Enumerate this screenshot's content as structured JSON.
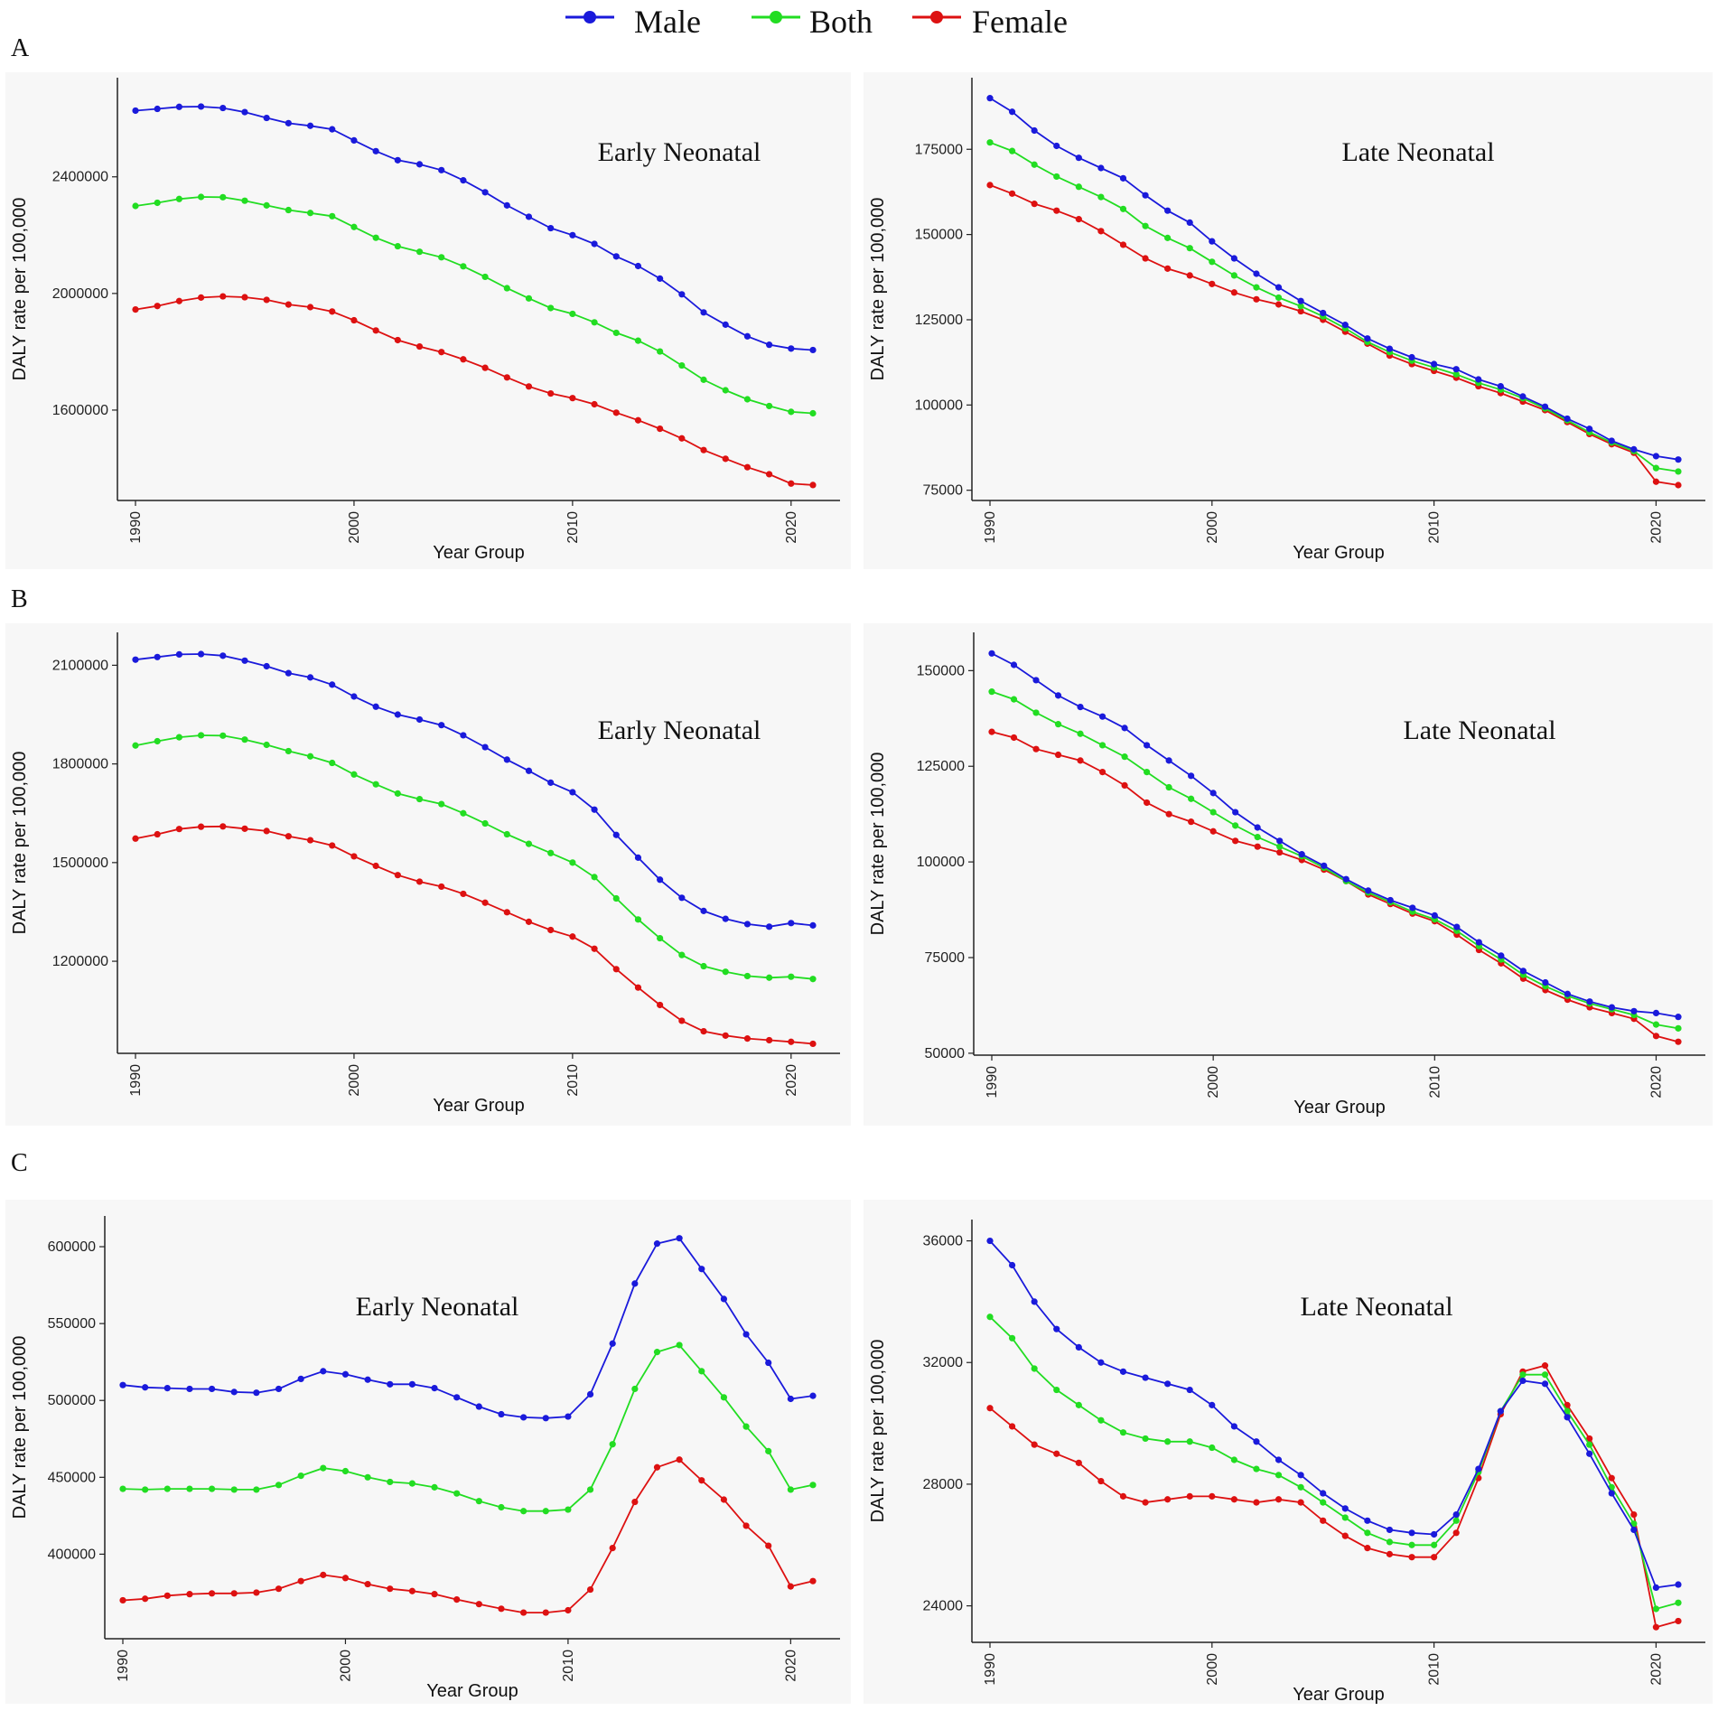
{
  "legend": [
    {
      "name": "Male",
      "color": "#1a1adb"
    },
    {
      "name": "Both",
      "color": "#22dd22"
    },
    {
      "name": "Female",
      "color": "#dd1111"
    }
  ],
  "panels": [
    {
      "letter": "A"
    },
    {
      "letter": "B"
    },
    {
      "letter": "C"
    }
  ],
  "chart_data": [
    {
      "id": "A-left",
      "type": "line",
      "title": "Early Neonatal",
      "xlabel": "Year Group",
      "ylabel": "DALY rate per 100,000",
      "x": [
        1990,
        1991,
        1992,
        1993,
        1994,
        1995,
        1996,
        1997,
        1998,
        1999,
        2000,
        2001,
        2002,
        2003,
        2004,
        2005,
        2006,
        2007,
        2008,
        2009,
        2010,
        2011,
        2012,
        2013,
        2014,
        2015,
        2016,
        2017,
        2018,
        2019,
        2020,
        2021
      ],
      "xticks": [
        1990,
        2000,
        2010,
        2020
      ],
      "ylim": [
        1290000,
        2740000
      ],
      "yticks": [
        1600000,
        2000000,
        2400000
      ],
      "series": [
        {
          "name": "Male",
          "values": [
            2627000,
            2633000,
            2640000,
            2641000,
            2636000,
            2622000,
            2602000,
            2584000,
            2575000,
            2563000,
            2525000,
            2488000,
            2457000,
            2443000,
            2423000,
            2388000,
            2347000,
            2302000,
            2263000,
            2224000,
            2200000,
            2170000,
            2127000,
            2094000,
            2051000,
            1997000,
            1935000,
            1893000,
            1853000,
            1824000,
            1811000,
            1806000
          ]
        },
        {
          "name": "Both",
          "values": [
            2300000,
            2311000,
            2324000,
            2331000,
            2330000,
            2318000,
            2302000,
            2286000,
            2276000,
            2265000,
            2228000,
            2191000,
            2162000,
            2143000,
            2124000,
            2093000,
            2057000,
            2018000,
            1983000,
            1950000,
            1930000,
            1901000,
            1865000,
            1838000,
            1801000,
            1753000,
            1704000,
            1668000,
            1637000,
            1614000,
            1594000,
            1589000
          ]
        },
        {
          "name": "Female",
          "values": [
            1945000,
            1957000,
            1974000,
            1986000,
            1990000,
            1987000,
            1978000,
            1962000,
            1953000,
            1938000,
            1908000,
            1873000,
            1840000,
            1818000,
            1799000,
            1774000,
            1745000,
            1712000,
            1681000,
            1657000,
            1641000,
            1620000,
            1591000,
            1565000,
            1536000,
            1503000,
            1463000,
            1433000,
            1404000,
            1380000,
            1348000,
            1343000
          ]
        }
      ]
    },
    {
      "id": "A-right",
      "type": "line",
      "title": "Late Neonatal",
      "xlabel": "Year Group",
      "ylabel": "DALY rate per 100,000",
      "x": [
        1990,
        1991,
        1992,
        1993,
        1994,
        1995,
        1996,
        1997,
        1998,
        1999,
        2000,
        2001,
        2002,
        2003,
        2004,
        2005,
        2006,
        2007,
        2008,
        2009,
        2010,
        2011,
        2012,
        2013,
        2014,
        2015,
        2016,
        2017,
        2018,
        2019,
        2020,
        2021
      ],
      "xticks": [
        1990,
        2000,
        2010,
        2020
      ],
      "ylim": [
        72000,
        196000
      ],
      "yticks": [
        75000,
        100000,
        125000,
        150000,
        175000
      ],
      "series": [
        {
          "name": "Male",
          "values": [
            190000,
            186000,
            180500,
            176000,
            172500,
            169500,
            166500,
            161500,
            157000,
            153500,
            148000,
            143000,
            138500,
            134500,
            130500,
            127000,
            123500,
            119500,
            116500,
            114000,
            112000,
            110500,
            107500,
            105500,
            102500,
            99500,
            96000,
            93000,
            89500,
            87000,
            85000,
            84000
          ]
        },
        {
          "name": "Both",
          "values": [
            177000,
            174500,
            170500,
            167000,
            164000,
            161000,
            157500,
            152500,
            149000,
            146000,
            142000,
            138000,
            134500,
            131500,
            129000,
            126000,
            122500,
            118500,
            115500,
            113000,
            111000,
            109000,
            106500,
            104500,
            102000,
            99000,
            95500,
            92000,
            89000,
            86500,
            81500,
            80500
          ]
        },
        {
          "name": "Female",
          "values": [
            164500,
            162000,
            159000,
            157000,
            154500,
            151000,
            147000,
            143000,
            140000,
            138000,
            135500,
            133000,
            131000,
            129500,
            127500,
            125000,
            121500,
            118000,
            114500,
            112000,
            110000,
            108000,
            105500,
            103500,
            101000,
            98500,
            95000,
            91500,
            88500,
            86000,
            77500,
            76500
          ]
        }
      ]
    },
    {
      "id": "B-left",
      "type": "line",
      "title": "Early Neonatal",
      "xlabel": "Year Group",
      "ylabel": "DALY rate per 100,000",
      "x": [
        1990,
        1991,
        1992,
        1993,
        1994,
        1995,
        1996,
        1997,
        1998,
        1999,
        2000,
        2001,
        2002,
        2003,
        2004,
        2005,
        2006,
        2007,
        2008,
        2009,
        2010,
        2011,
        2012,
        2013,
        2014,
        2015,
        2016,
        2017,
        2018,
        2019,
        2020,
        2021
      ],
      "xticks": [
        1990,
        2000,
        2010,
        2020
      ],
      "ylim": [
        920000,
        2200000
      ],
      "yticks": [
        1200000,
        1500000,
        1800000,
        2100000
      ],
      "series": [
        {
          "name": "Male",
          "values": [
            2117000,
            2125000,
            2133000,
            2134000,
            2129000,
            2114000,
            2097000,
            2076000,
            2063000,
            2041000,
            2005000,
            1974000,
            1950000,
            1935000,
            1918000,
            1887000,
            1851000,
            1813000,
            1779000,
            1743000,
            1714000,
            1661000,
            1584000,
            1515000,
            1448000,
            1393000,
            1353000,
            1329000,
            1313000,
            1305000,
            1316000,
            1309000
          ]
        },
        {
          "name": "Both",
          "values": [
            1856000,
            1869000,
            1881000,
            1887000,
            1886000,
            1874000,
            1858000,
            1839000,
            1823000,
            1803000,
            1768000,
            1738000,
            1710000,
            1693000,
            1678000,
            1650000,
            1619000,
            1586000,
            1557000,
            1529000,
            1500000,
            1456000,
            1391000,
            1327000,
            1270000,
            1219000,
            1185000,
            1168000,
            1155000,
            1150000,
            1153000,
            1146000
          ]
        },
        {
          "name": "Female",
          "values": [
            1573000,
            1586000,
            1602000,
            1609000,
            1610000,
            1603000,
            1596000,
            1580000,
            1568000,
            1552000,
            1519000,
            1490000,
            1462000,
            1442000,
            1427000,
            1405000,
            1378000,
            1349000,
            1320000,
            1295000,
            1275000,
            1238000,
            1176000,
            1120000,
            1067000,
            1019000,
            987000,
            974000,
            965000,
            960000,
            955000,
            949000
          ]
        }
      ]
    },
    {
      "id": "B-right",
      "type": "line",
      "title": "Late Neonatal",
      "xlabel": "Year Group",
      "ylabel": "DALY rate per 100,000",
      "x": [
        1990,
        1991,
        1992,
        1993,
        1994,
        1995,
        1996,
        1997,
        1998,
        1999,
        2000,
        2001,
        2002,
        2003,
        2004,
        2005,
        2006,
        2007,
        2008,
        2009,
        2010,
        2011,
        2012,
        2013,
        2014,
        2015,
        2016,
        2017,
        2018,
        2019,
        2020,
        2021
      ],
      "xticks": [
        1990,
        2000,
        2010,
        2020
      ],
      "ylim": [
        49500,
        160000
      ],
      "yticks": [
        50000,
        75000,
        100000,
        125000,
        150000
      ],
      "series": [
        {
          "name": "Male",
          "values": [
            154500,
            151500,
            147500,
            143500,
            140500,
            138000,
            135000,
            130500,
            126500,
            122500,
            118000,
            113000,
            109000,
            105500,
            102000,
            99000,
            95500,
            92500,
            90000,
            88000,
            86000,
            83000,
            79000,
            75500,
            71500,
            68500,
            65500,
            63500,
            62000,
            61000,
            60500,
            59500
          ]
        },
        {
          "name": "Both",
          "values": [
            144500,
            142500,
            139000,
            136000,
            133500,
            130500,
            127500,
            123500,
            119500,
            116500,
            113000,
            109500,
            106500,
            104000,
            101500,
            98500,
            95000,
            92000,
            89500,
            87000,
            85000,
            82000,
            78000,
            74500,
            70500,
            67500,
            65000,
            63000,
            61500,
            60000,
            57500,
            56500
          ]
        },
        {
          "name": "Female",
          "values": [
            134000,
            132500,
            129500,
            128000,
            126500,
            123500,
            120000,
            115500,
            112500,
            110500,
            108000,
            105500,
            104000,
            102500,
            100500,
            98000,
            95000,
            91500,
            89000,
            86500,
            84500,
            81000,
            77000,
            73500,
            69500,
            66500,
            64000,
            62000,
            60500,
            59000,
            54500,
            53000
          ]
        }
      ]
    },
    {
      "id": "C-left",
      "type": "line",
      "title": "Early Neonatal",
      "xlabel": "Year Group",
      "ylabel": "DALY rate per 100,000",
      "x": [
        1990,
        1991,
        1992,
        1993,
        1994,
        1995,
        1996,
        1997,
        1998,
        1999,
        2000,
        2001,
        2002,
        2003,
        2004,
        2005,
        2006,
        2007,
        2008,
        2009,
        2010,
        2011,
        2012,
        2013,
        2014,
        2015,
        2016,
        2017,
        2018,
        2019,
        2020,
        2021
      ],
      "xticks": [
        1990,
        2000,
        2010,
        2020
      ],
      "ylim": [
        345000,
        620000
      ],
      "yticks": [
        400000,
        450000,
        500000,
        550000,
        600000
      ],
      "series": [
        {
          "name": "Male",
          "values": [
            510000,
            508500,
            508000,
            507500,
            507500,
            505500,
            505000,
            507500,
            514000,
            519000,
            517000,
            513500,
            510500,
            510500,
            508000,
            502000,
            496000,
            491000,
            489000,
            488500,
            489500,
            504000,
            537000,
            576000,
            602000,
            605500,
            585500,
            566000,
            543000,
            524500,
            501000,
            503000
          ]
        },
        {
          "name": "Both",
          "values": [
            442500,
            442000,
            442500,
            442500,
            442500,
            442000,
            442000,
            445000,
            451000,
            456000,
            454000,
            450000,
            447000,
            446000,
            443500,
            439500,
            434500,
            430500,
            428000,
            428000,
            429000,
            442000,
            471500,
            507500,
            531500,
            536000,
            519000,
            502000,
            483000,
            467000,
            442000,
            445000
          ]
        },
        {
          "name": "Female",
          "values": [
            370000,
            371000,
            373000,
            374000,
            374500,
            374500,
            375000,
            377500,
            382500,
            386500,
            384500,
            380500,
            377500,
            376000,
            374000,
            370500,
            367500,
            364500,
            362000,
            362000,
            363500,
            377000,
            404000,
            434000,
            456500,
            461500,
            448000,
            435500,
            418500,
            405500,
            379000,
            382500
          ]
        }
      ]
    },
    {
      "id": "C-right",
      "type": "line",
      "title": "Late Neonatal",
      "xlabel": "Year Group",
      "ylabel": "DALY rate per 100,000",
      "x": [
        1990,
        1991,
        1992,
        1993,
        1994,
        1995,
        1996,
        1997,
        1998,
        1999,
        2000,
        2001,
        2002,
        2003,
        2004,
        2005,
        2006,
        2007,
        2008,
        2009,
        2010,
        2011,
        2012,
        2013,
        2014,
        2015,
        2016,
        2017,
        2018,
        2019,
        2020,
        2021
      ],
      "xticks": [
        1990,
        2000,
        2010,
        2020
      ],
      "ylim": [
        22800,
        36700
      ],
      "yticks": [
        24000,
        28000,
        32000,
        36000
      ],
      "series": [
        {
          "name": "Male",
          "values": [
            36000,
            35200,
            34000,
            33100,
            32500,
            32000,
            31700,
            31500,
            31300,
            31100,
            30600,
            29900,
            29400,
            28800,
            28300,
            27700,
            27200,
            26800,
            26500,
            26400,
            26350,
            27000,
            28500,
            30400,
            31400,
            31300,
            30200,
            29000,
            27700,
            26500,
            24600,
            24700
          ]
        },
        {
          "name": "Both",
          "values": [
            33500,
            32800,
            31800,
            31100,
            30600,
            30100,
            29700,
            29500,
            29400,
            29400,
            29200,
            28800,
            28500,
            28300,
            27900,
            27400,
            26900,
            26400,
            26100,
            26000,
            26000,
            26800,
            28400,
            30400,
            31600,
            31600,
            30400,
            29300,
            27900,
            26700,
            23900,
            24100
          ]
        },
        {
          "name": "Female",
          "values": [
            30500,
            29900,
            29300,
            29000,
            28700,
            28100,
            27600,
            27400,
            27500,
            27600,
            27600,
            27500,
            27400,
            27500,
            27400,
            26800,
            26300,
            25900,
            25700,
            25600,
            25600,
            26400,
            28200,
            30300,
            31700,
            31900,
            30600,
            29500,
            28200,
            27000,
            23300,
            23500
          ]
        }
      ]
    }
  ]
}
